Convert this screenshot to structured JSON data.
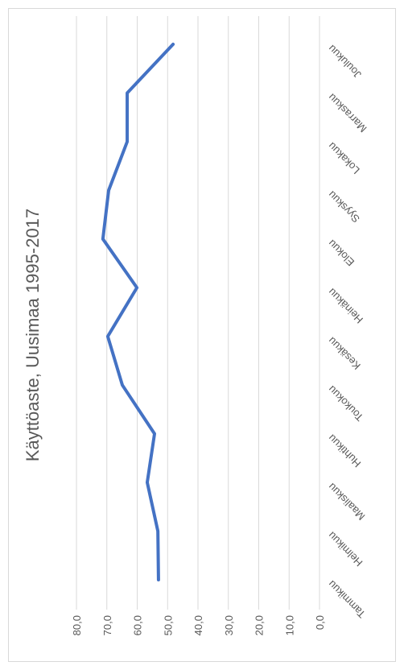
{
  "chart_data": {
    "type": "line",
    "title": "Käyttöaste, Uusimaa 1995-2017",
    "categories": [
      "Tammikuu",
      "Helmikuu",
      "Maaliskuu",
      "Huhtikuu",
      "Toukokuu",
      "Kesäkuu",
      "Heinäkuu",
      "Elokuu",
      "Syyskuu",
      "Lokakuu",
      "Marraskuu",
      "Joulukuu"
    ],
    "series": [
      {
        "name": "Käyttöaste",
        "color": "#4472c4",
        "values": [
          53.0,
          53.2,
          56.7,
          54.3,
          64.9,
          69.7,
          60.1,
          71.3,
          69.4,
          63.3,
          63.3,
          48.2
        ]
      }
    ],
    "ylim": [
      0,
      80
    ],
    "yticks": [
      {
        "value": 0,
        "label": "0,0"
      },
      {
        "value": 10,
        "label": "10,0"
      },
      {
        "value": 20,
        "label": "20,0"
      },
      {
        "value": 30,
        "label": "30,0"
      },
      {
        "value": 40,
        "label": "40,0"
      },
      {
        "value": 50,
        "label": "50,0"
      },
      {
        "value": 60,
        "label": "60,0"
      },
      {
        "value": 70,
        "label": "70,0"
      },
      {
        "value": 80,
        "label": "80,0"
      }
    ],
    "grid": true
  }
}
